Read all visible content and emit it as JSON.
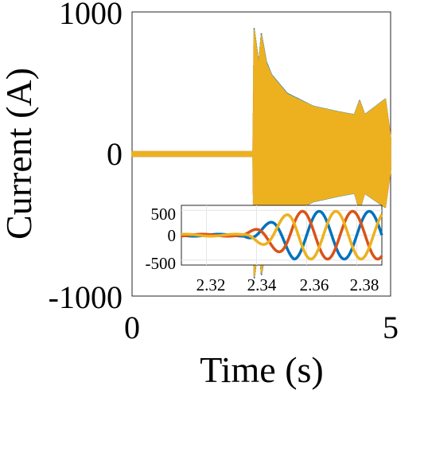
{
  "chart_data": [
    {
      "type": "line",
      "xlabel": "Time (s)",
      "ylabel": "Current (A)",
      "xlim": [
        0,
        5
      ],
      "ylim": [
        -1000,
        1000
      ],
      "x_ticks": [
        "0",
        "5"
      ],
      "y_ticks": [
        "1000",
        "0",
        "-1000"
      ],
      "grid": false,
      "series": [
        {
          "color": "#0072BD",
          "x": [
            0,
            2.34,
            2.36,
            2.45,
            2.5,
            2.6,
            2.7,
            3.0,
            3.5,
            4.0,
            4.3,
            4.4,
            4.5,
            4.9,
            5.0
          ],
          "envelope_max": [
            20,
            20,
            890,
            640,
            850,
            650,
            560,
            430,
            340,
            300,
            280,
            380,
            280,
            390,
            120
          ],
          "envelope_min": [
            -20,
            -20,
            -890,
            -640,
            -860,
            -650,
            -560,
            -430,
            -340,
            -300,
            -280,
            -400,
            -280,
            -380,
            -120
          ]
        },
        {
          "color": "#D95319",
          "x": [
            0,
            2.34,
            2.36,
            2.45,
            2.5,
            2.6,
            2.7,
            3.0,
            3.5,
            4.0,
            4.3,
            4.4,
            4.5,
            4.9,
            5.0
          ],
          "envelope_max": [
            20,
            20,
            870,
            620,
            830,
            630,
            550,
            420,
            335,
            295,
            275,
            370,
            275,
            385,
            120
          ],
          "envelope_min": [
            -20,
            -20,
            -870,
            -620,
            -840,
            -630,
            -550,
            -420,
            -335,
            -295,
            -275,
            -390,
            -275,
            -375,
            -120
          ]
        },
        {
          "color": "#EDB120",
          "x": [
            0,
            2.34,
            2.36,
            2.45,
            2.5,
            2.6,
            2.7,
            3.0,
            3.5,
            4.0,
            4.3,
            4.4,
            4.5,
            4.9,
            5.0
          ],
          "envelope_max": [
            20,
            20,
            880,
            630,
            840,
            640,
            555,
            425,
            338,
            298,
            278,
            375,
            278,
            388,
            120
          ],
          "envelope_min": [
            -20,
            -20,
            -880,
            -630,
            -850,
            -640,
            -555,
            -425,
            -338,
            -298,
            -278,
            -395,
            -278,
            -378,
            -120
          ]
        }
      ]
    },
    {
      "type": "line",
      "title": "",
      "xlim": [
        2.31,
        2.39
      ],
      "ylim": [
        -600,
        600
      ],
      "x_ticks": [
        "2.32",
        "2.34",
        "2.36",
        "2.38"
      ],
      "y_ticks": [
        "500",
        "0",
        "-500"
      ],
      "grid": true,
      "series": [
        {
          "color": "#0072BD",
          "phase_deg": 0
        },
        {
          "color": "#D95319",
          "phase_deg": 120
        },
        {
          "color": "#EDB120",
          "phase_deg": 240
        }
      ],
      "frequency_hz": 50,
      "fault_time_s": 2.335,
      "steady_amplitude": 480,
      "pre_fault_amplitude": 20
    }
  ]
}
